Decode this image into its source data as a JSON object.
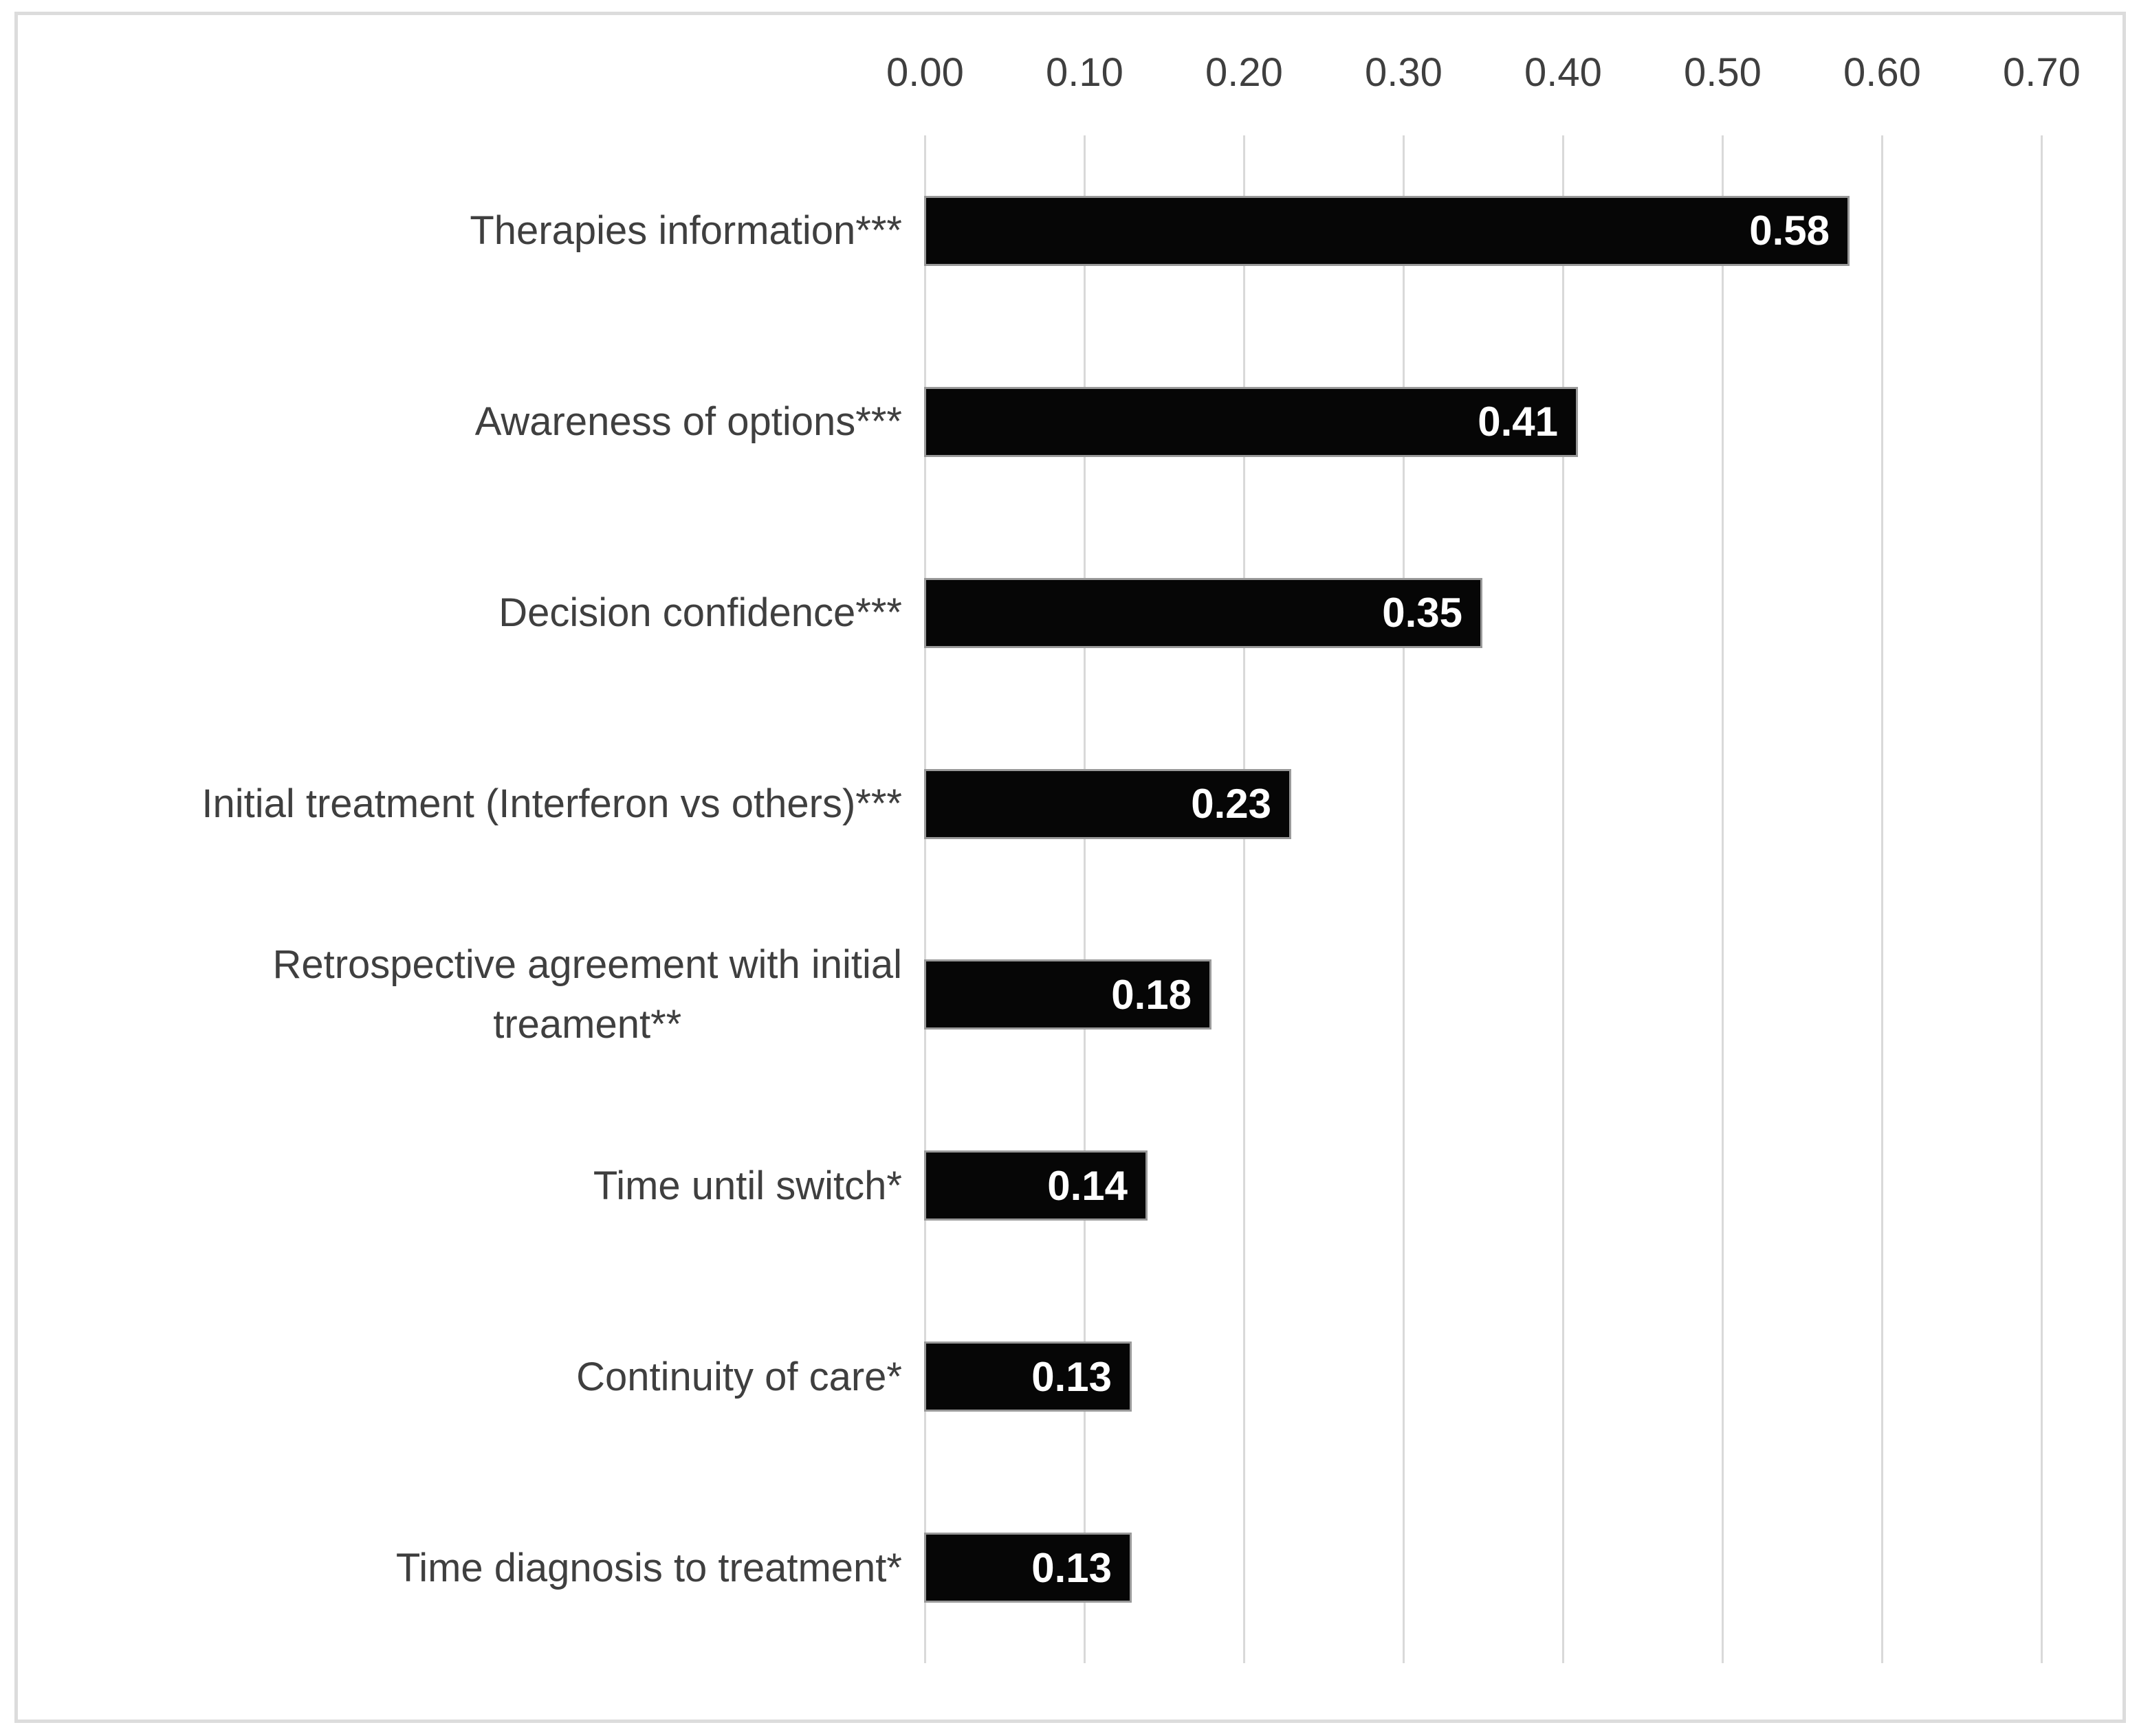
{
  "figure": {
    "background_color": "#ffffff",
    "border_color": "#dcdcdc"
  },
  "chart_data": {
    "type": "bar",
    "orientation": "horizontal",
    "title": "",
    "xlabel": "",
    "ylabel": "",
    "xlim": [
      0.0,
      0.7
    ],
    "x_axis_position": "top",
    "grid": "vertical-on",
    "legend": "none",
    "bar_color": "#060606",
    "bar_border_color": "#999999",
    "gridline_color": "#d9d9d9",
    "axis_text_color": "#3f3f3f",
    "value_label_color": "#ffffff",
    "x_ticks": [
      "0.00",
      "0.10",
      "0.20",
      "0.30",
      "0.40",
      "0.50",
      "0.60",
      "0.70"
    ],
    "categories": [
      "Therapies information***",
      "Awareness of options***",
      "Decision confidence***",
      "Initial treatment (Interferon vs others)***",
      "Retrospective agreement with initial\ntreament**",
      "Time until switch*",
      "Continuity of care*",
      "Time diagnosis to treatment*"
    ],
    "values": [
      0.58,
      0.41,
      0.35,
      0.23,
      0.18,
      0.14,
      0.13,
      0.13
    ],
    "value_labels": [
      "0.58",
      "0.41",
      "0.35",
      "0.23",
      "0.18",
      "0.14",
      "0.13",
      "0.13"
    ]
  }
}
